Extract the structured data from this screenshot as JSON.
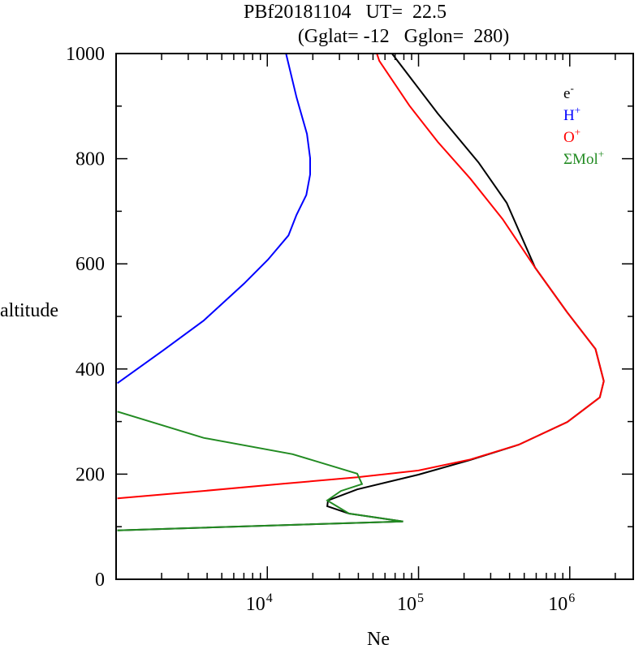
{
  "chart_data": {
    "type": "line",
    "title": "PBf20181104   UT=  22.5",
    "subtitle": "(Gglat= -12   Gglon=  280)",
    "xlabel": "Ne",
    "ylabel": "altitude",
    "xscale": "log",
    "xlim": [
      1000,
      2630000
    ],
    "ylim": [
      0,
      1000
    ],
    "xticks": [
      {
        "value": 10000,
        "base": "10",
        "exp": "4"
      },
      {
        "value": 100000,
        "base": "10",
        "exp": "5"
      },
      {
        "value": 1000000,
        "base": "10",
        "exp": "6"
      }
    ],
    "yticks": [
      "0",
      "200",
      "400",
      "600",
      "800",
      "1000"
    ],
    "ytick_values": [
      0,
      200,
      400,
      600,
      800,
      1000
    ],
    "legend_position": "top-right",
    "series": [
      {
        "name": "e",
        "sup": "-",
        "color": "#000000",
        "points": [
          [
            1020,
            93
          ],
          [
            79000,
            110
          ],
          [
            34700,
            125
          ],
          [
            24900,
            139
          ],
          [
            25200,
            150
          ],
          [
            39300,
            171
          ],
          [
            100000,
            199
          ],
          [
            220000,
            227
          ],
          [
            460000,
            256
          ],
          [
            964000,
            299
          ],
          [
            1580000,
            346
          ],
          [
            1680000,
            377
          ],
          [
            1480000,
            438
          ],
          [
            960000,
            508
          ],
          [
            589000,
            593
          ],
          [
            383000,
            716
          ],
          [
            249000,
            793
          ],
          [
            134000,
            886
          ],
          [
            66700,
            1000
          ]
        ]
      },
      {
        "name": "H",
        "sup": "+",
        "color": "#0000ff",
        "points": [
          [
            1020,
            373
          ],
          [
            2040,
            435
          ],
          [
            3790,
            492
          ],
          [
            7000,
            562
          ],
          [
            10100,
            608
          ],
          [
            13800,
            654
          ],
          [
            15600,
            693
          ],
          [
            18100,
            731
          ],
          [
            19200,
            770
          ],
          [
            19200,
            801
          ],
          [
            18300,
            847
          ],
          [
            15600,
            917
          ],
          [
            13300,
            1000
          ]
        ]
      },
      {
        "name": "O",
        "sup": "+",
        "color": "#ff0000",
        "points": [
          [
            1020,
            154
          ],
          [
            3790,
            168
          ],
          [
            12900,
            182
          ],
          [
            39300,
            194
          ],
          [
            100000,
            207
          ],
          [
            220000,
            228
          ],
          [
            460000,
            256
          ],
          [
            964000,
            299
          ],
          [
            1580000,
            346
          ],
          [
            1680000,
            377
          ],
          [
            1480000,
            438
          ],
          [
            960000,
            508
          ],
          [
            589000,
            593
          ],
          [
            360000,
            685
          ],
          [
            220000,
            762
          ],
          [
            134000,
            832
          ],
          [
            87000,
            901
          ],
          [
            55000,
            986
          ],
          [
            53000,
            1000
          ]
        ]
      },
      {
        "name": "ΣMol",
        "sup": "+",
        "color": "#228b22",
        "points": [
          [
            1020,
            319
          ],
          [
            3790,
            269
          ],
          [
            14700,
            238
          ],
          [
            39300,
            201
          ],
          [
            42300,
            181
          ],
          [
            30700,
            168
          ],
          [
            24900,
            150
          ],
          [
            34700,
            125
          ],
          [
            79000,
            110
          ],
          [
            1020,
            93
          ]
        ]
      }
    ]
  }
}
